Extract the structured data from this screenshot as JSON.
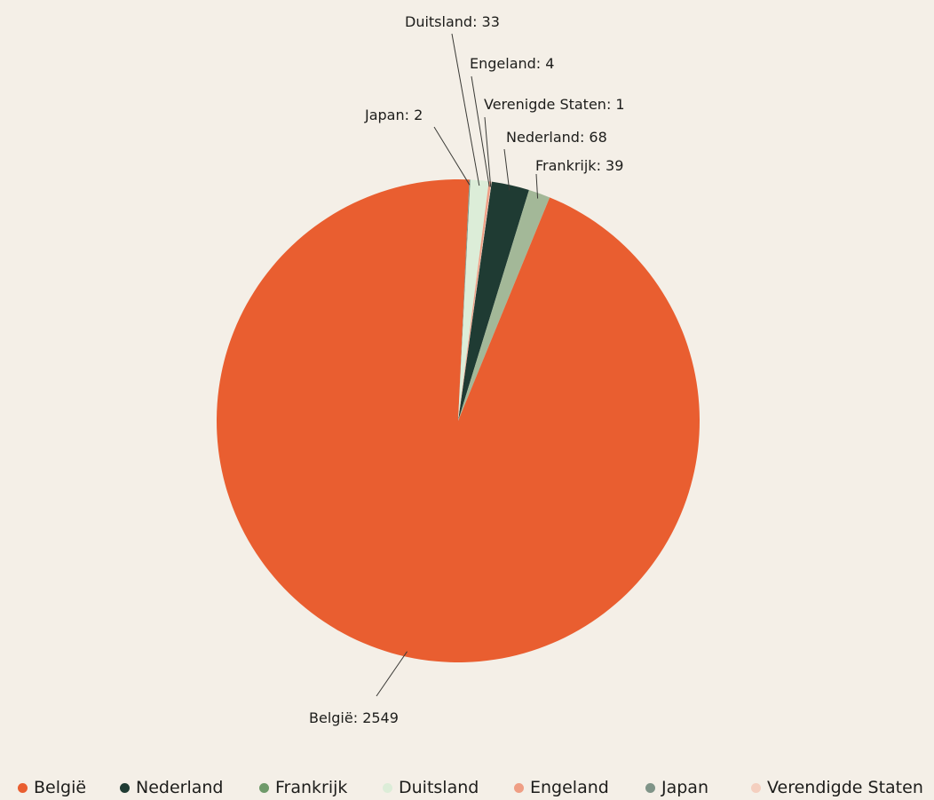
{
  "chart_data": {
    "type": "pie",
    "title": "",
    "slices": [
      {
        "name": "België",
        "value": 2549,
        "color": "#e95e30",
        "label": "België: 2549"
      },
      {
        "name": "Nederland",
        "value": 68,
        "color": "#1f3b33",
        "label": "Nederland: 68"
      },
      {
        "name": "Frankrijk",
        "value": 39,
        "color": "#a3b898",
        "label": "Frankrijk: 39"
      },
      {
        "name": "Duitsland",
        "value": 33,
        "color": "#dcedd8",
        "label": "Duitsland: 33"
      },
      {
        "name": "Engeland",
        "value": 4,
        "color": "#ef9e84",
        "label": "Engeland: 4"
      },
      {
        "name": "Japan",
        "value": 2,
        "color": "#7f9488",
        "label": "Japan: 2"
      },
      {
        "name": "Verenigde Staten",
        "value": 1,
        "color": "#f4cfbf",
        "label": "Verenigde Staten: 1"
      }
    ],
    "legend_position": "bottom",
    "legend": [
      {
        "label": "België",
        "color": "#e95e30"
      },
      {
        "label": "Nederland",
        "color": "#1f3b33"
      },
      {
        "label": "Frankrijk",
        "color": "#6f9a6a"
      },
      {
        "label": "Duitsland",
        "color": "#dcedd8"
      },
      {
        "label": "Engeland",
        "color": "#ef9e84"
      },
      {
        "label": "Japan",
        "color": "#7f9488"
      },
      {
        "label": "Verendigde Staten",
        "color": "#f4cfbf"
      }
    ]
  }
}
